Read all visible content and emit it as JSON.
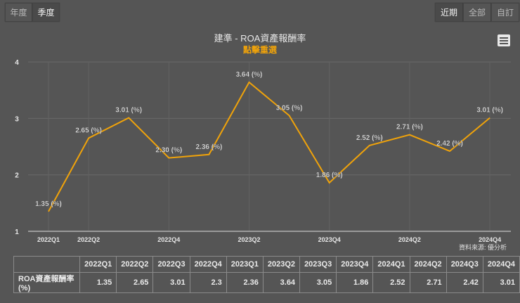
{
  "toolbar": {
    "period_buttons": [
      {
        "label": "年度",
        "active": false
      },
      {
        "label": "季度",
        "active": true
      }
    ],
    "range_buttons": [
      {
        "label": "近期",
        "active": true
      },
      {
        "label": "全部",
        "active": false
      },
      {
        "label": "自訂",
        "active": false
      }
    ]
  },
  "chart": {
    "title": "建準 - ROA資產報酬率",
    "subtitle": "點擊重選",
    "menu_icon": "hamburger-menu-icon",
    "source": "資料來源: 優分析",
    "line_color": "#f0a30a"
  },
  "chart_data": {
    "type": "line",
    "title": "建準 - ROA資產報酬率",
    "subtitle": "點擊重選",
    "xlabel": "",
    "ylabel": "",
    "categories": [
      "2022Q1",
      "2022Q2",
      "2022Q3",
      "2022Q4",
      "2023Q1",
      "2023Q2",
      "2023Q3",
      "2023Q4",
      "2024Q1",
      "2024Q2",
      "2024Q3",
      "2024Q4"
    ],
    "x_tick_labels": [
      "2022Q1",
      "2022Q2",
      "2022Q4",
      "2023Q2",
      "2023Q4",
      "2024Q2",
      "2024Q4"
    ],
    "series": [
      {
        "name": "ROA資產報酬率(%)",
        "values": [
          1.35,
          2.65,
          3.01,
          2.3,
          2.36,
          3.64,
          3.05,
          1.86,
          2.52,
          2.71,
          2.42,
          3.01
        ],
        "color": "#f0a30a"
      }
    ],
    "data_labels": [
      "1.35 (%)",
      "2.65 (%)",
      "3.01 (%)",
      "2.30 (%)",
      "2.36 (%)",
      "3.64 (%)",
      "3.05 (%)",
      "1.86 (%)",
      "2.52 (%)",
      "2.71 (%)",
      "2.42 (%)",
      "3.01 (%)"
    ],
    "y_ticks": [
      "1",
      "2",
      "3",
      "4"
    ],
    "ylim": [
      1,
      4
    ],
    "grid": true,
    "legend": "none"
  },
  "table": {
    "corner": "",
    "headers": [
      "2022Q1",
      "2022Q2",
      "2022Q3",
      "2022Q4",
      "2023Q1",
      "2023Q2",
      "2023Q3",
      "2023Q4",
      "2024Q1",
      "2024Q2",
      "2024Q3",
      "2024Q4"
    ],
    "row_label": "ROA資產報酬率(%)",
    "values": [
      "1.35",
      "2.65",
      "3.01",
      "2.3",
      "2.36",
      "3.64",
      "3.05",
      "1.86",
      "2.52",
      "2.71",
      "2.42",
      "3.01"
    ]
  }
}
